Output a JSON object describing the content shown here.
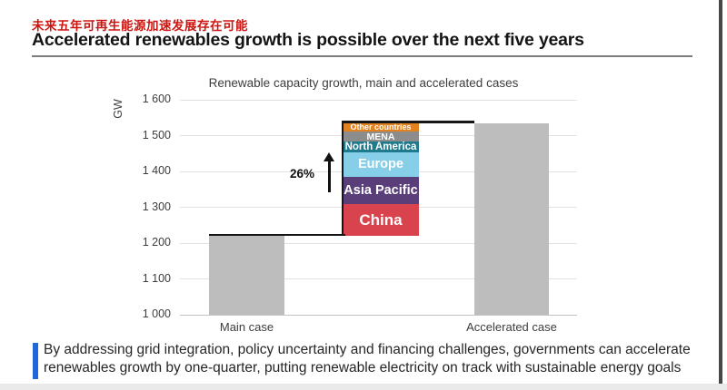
{
  "page": {
    "subtitle_cn": "未来五年可再生能源加速发展存在可能",
    "title": "Accelerated renewables growth is possible over the next five years",
    "subtitle_color": "#cd1410",
    "callout_accent_color": "#2068d9",
    "callout_line1": "By addressing grid integration, policy uncertainty and financing challenges, governments can accelerate",
    "callout_line2": "renewables growth by one-quarter, putting renewable electricity on track with sustainable energy goals"
  },
  "chart_data": {
    "type": "bar",
    "title": "Renewable capacity growth, main and accelerated cases",
    "ylabel": "GW",
    "ylim": [
      1000,
      1600
    ],
    "ytick_step": 100,
    "ytick_labels": [
      "1 000",
      "1 100",
      "1 200",
      "1 300",
      "1 400",
      "1 500",
      "1 600"
    ],
    "grid": true,
    "categories": [
      "Main case",
      "Accelerated case"
    ],
    "bar_color": "#bdbdbd",
    "bars": [
      {
        "category": "Main case",
        "value": 1220
      },
      {
        "category": "Accelerated case",
        "value": 1535
      }
    ],
    "growth_annotation": "26%",
    "stack_base": 1220,
    "stack_total": 1535,
    "stack_segments": [
      {
        "name": "China",
        "value": 88,
        "color": "#d9434e"
      },
      {
        "name": "Asia Pacific",
        "value": 78,
        "color": "#5a3e79"
      },
      {
        "name": "Europe",
        "value": 67,
        "color": "#87cee8"
      },
      {
        "name": "North America",
        "value": 30,
        "color": "#1e7a8c"
      },
      {
        "name": "MENA",
        "value": 28,
        "color": "#8c8c8c"
      },
      {
        "name": "Other countries",
        "value": 24,
        "color": "#e0821f"
      }
    ]
  }
}
